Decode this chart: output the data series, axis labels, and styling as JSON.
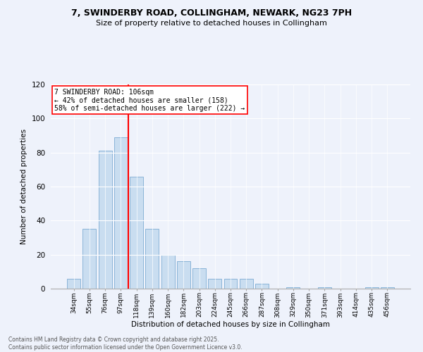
{
  "title": "7, SWINDERBY ROAD, COLLINGHAM, NEWARK, NG23 7PH",
  "subtitle": "Size of property relative to detached houses in Collingham",
  "xlabel": "Distribution of detached houses by size in Collingham",
  "ylabel": "Number of detached properties",
  "categories": [
    "34sqm",
    "55sqm",
    "76sqm",
    "97sqm",
    "118sqm",
    "139sqm",
    "160sqm",
    "182sqm",
    "203sqm",
    "224sqm",
    "245sqm",
    "266sqm",
    "287sqm",
    "308sqm",
    "329sqm",
    "350sqm",
    "371sqm",
    "393sqm",
    "414sqm",
    "435sqm",
    "456sqm"
  ],
  "values": [
    6,
    35,
    81,
    89,
    66,
    35,
    20,
    16,
    12,
    6,
    6,
    6,
    3,
    0,
    1,
    0,
    1,
    0,
    0,
    1,
    1
  ],
  "bar_color": "#c9ddf0",
  "bar_edge_color": "#8ab4d8",
  "annotation_text_line1": "7 SWINDERBY ROAD: 106sqm",
  "annotation_text_line2": "← 42% of detached houses are smaller (158)",
  "annotation_text_line3": "58% of semi-detached houses are larger (222) →",
  "red_line_x": 3.5,
  "ylim": [
    0,
    120
  ],
  "yticks": [
    0,
    20,
    40,
    60,
    80,
    100,
    120
  ],
  "footer_line1": "Contains HM Land Registry data © Crown copyright and database right 2025.",
  "footer_line2": "Contains public sector information licensed under the Open Government Licence v3.0.",
  "bg_color": "#eef2fb",
  "plot_bg_color": "#eef2fb"
}
